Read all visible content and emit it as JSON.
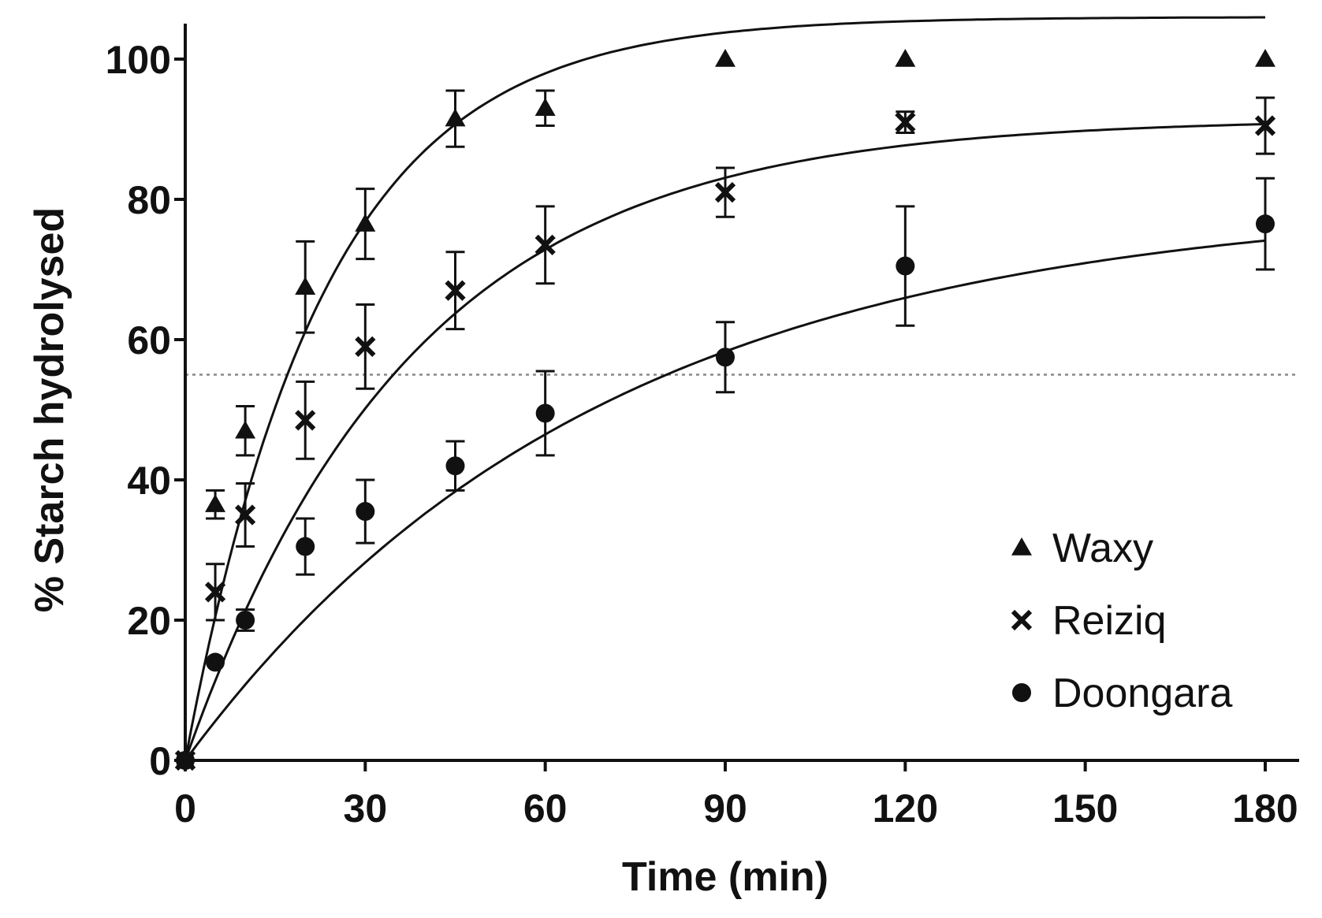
{
  "chart_data": {
    "type": "scatter",
    "title": "",
    "xlabel": "Time (min)",
    "ylabel": "% Starch hydrolysed",
    "xlim": [
      0,
      180
    ],
    "ylim": [
      0,
      100
    ],
    "xticks": [
      "0",
      "30",
      "60",
      "90",
      "120",
      "150",
      "180"
    ],
    "yticks": [
      "0",
      "20",
      "40",
      "60",
      "80",
      "100"
    ],
    "reference_line": {
      "y": 55,
      "style": "dotted"
    },
    "legend_position": "bottom-right",
    "series": [
      {
        "name": "Waxy",
        "marker": "triangle",
        "x": [
          0,
          5,
          10,
          20,
          30,
          45,
          60,
          90,
          120,
          180
        ],
        "y": [
          0,
          36.5,
          47,
          67.5,
          76.5,
          91.5,
          93,
          100,
          100,
          100
        ],
        "err": [
          0,
          2,
          3.5,
          6.5,
          5,
          4,
          2.5,
          0,
          0,
          0
        ],
        "fit": {
          "model": "first-order",
          "cinf": 106,
          "k": 0.043
        }
      },
      {
        "name": "Reiziq",
        "marker": "x",
        "x": [
          0,
          5,
          10,
          20,
          30,
          45,
          60,
          90,
          120,
          180
        ],
        "y": [
          0,
          24,
          35,
          48.5,
          59,
          67,
          73.5,
          81,
          91,
          90.5
        ],
        "err": [
          0,
          4,
          4.5,
          5.5,
          6,
          5.5,
          5.5,
          3.5,
          1.5,
          4
        ],
        "fit": {
          "model": "first-order",
          "cinf": 91.5,
          "k": 0.0265
        }
      },
      {
        "name": "Doongara",
        "marker": "circle",
        "x": [
          0,
          5,
          10,
          20,
          30,
          45,
          60,
          90,
          120,
          180
        ],
        "y": [
          0,
          14,
          20,
          30.5,
          35.5,
          42,
          49.5,
          57.5,
          70.5,
          76.5
        ],
        "err": [
          0,
          0,
          1.5,
          4,
          4.5,
          3.5,
          6,
          5,
          8.5,
          6.5
        ],
        "fit": {
          "model": "first-order",
          "cinf": 80,
          "k": 0.0145
        }
      }
    ]
  }
}
